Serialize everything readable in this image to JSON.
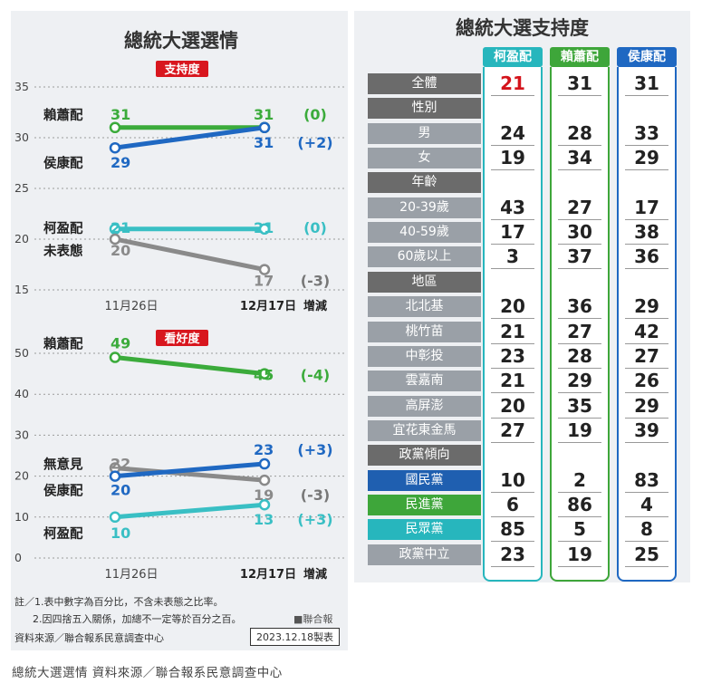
{
  "left": {
    "title": "總統大選選情",
    "chart_data": [
      {
        "type": "line",
        "badge": "支持度",
        "x": [
          "11月26日",
          "12月17日"
        ],
        "change_header": "增減",
        "ylim": [
          15,
          35
        ],
        "yticks": [
          "35",
          "30",
          "25",
          "20",
          "15"
        ],
        "series": [
          {
            "name": "賴蕭配",
            "color": "#3bab3b",
            "values": [
              31,
              31
            ],
            "start_label": "31",
            "end_label": "31",
            "change": "(0)",
            "change_color": "#3bab3b"
          },
          {
            "name": "侯康配",
            "color": "#1f68c2",
            "values": [
              29,
              31
            ],
            "start_label": "29",
            "end_label": "31",
            "change": "(+2)",
            "change_color": "#1f68c2"
          },
          {
            "name": "柯盈配",
            "color": "#39bfc4",
            "values": [
              21,
              21
            ],
            "start_label": "21",
            "end_label": "21",
            "change": "(0)",
            "change_color": "#39bfc4"
          },
          {
            "name": "未表態",
            "color": "#8a8a8a",
            "values": [
              20,
              17
            ],
            "start_label": "20",
            "end_label": "17",
            "change": "(-3)",
            "change_color": "#777777"
          }
        ]
      },
      {
        "type": "line",
        "badge": "看好度",
        "x": [
          "11月26日",
          "12月17日"
        ],
        "change_header": "增減",
        "ylim": [
          0,
          50
        ],
        "yticks": [
          "50",
          "40",
          "30",
          "20",
          "10",
          "0"
        ],
        "series": [
          {
            "name": "賴蕭配",
            "color": "#3bab3b",
            "values": [
              49,
              45
            ],
            "start_label": "49",
            "end_label": "45",
            "change": "(-4)",
            "change_color": "#3bab3b"
          },
          {
            "name": "無意見",
            "color": "#8a8a8a",
            "values": [
              22,
              19
            ],
            "start_label": "22",
            "end_label": "19",
            "change": "(-3)",
            "change_color": "#777777"
          },
          {
            "name": "侯康配",
            "color": "#1f68c2",
            "values": [
              20,
              23
            ],
            "start_label": "20",
            "end_label": "23",
            "change": "(+3)",
            "change_color": "#1f68c2"
          },
          {
            "name": "柯盈配",
            "color": "#39bfc4",
            "values": [
              10,
              13
            ],
            "start_label": "10",
            "end_label": "13",
            "change": "(+3)",
            "change_color": "#39bfc4"
          }
        ]
      }
    ],
    "footnote_1": "註／1.表中數字為百分比，不含未表態之比率。",
    "footnote_2": "2.因四捨五入關係，加總不一定等於百分之百。",
    "footnote_brand": "■聯合報",
    "source": "資料來源／聯合報系民意調查中心",
    "date_made": "2023.12.18製表"
  },
  "right": {
    "title": "總統大選支持度",
    "chart_data": {
      "type": "table",
      "columns": [
        {
          "name": "柯盈配",
          "color": "#27b6bd"
        },
        {
          "name": "賴蕭配",
          "color": "#3ea63a"
        },
        {
          "name": "侯康配",
          "color": "#1f68c2"
        }
      ],
      "rows": [
        {
          "label": "全體",
          "bg": "#6b6b6b",
          "values": [
            "21",
            "31",
            "31"
          ],
          "highlight": true
        },
        {
          "label": "性別",
          "bg": "#6b6b6b",
          "values": [
            "",
            "",
            ""
          ],
          "header": true
        },
        {
          "label": "男",
          "bg": "#9aa0a7",
          "values": [
            "24",
            "28",
            "33"
          ]
        },
        {
          "label": "女",
          "bg": "#9aa0a7",
          "values": [
            "19",
            "34",
            "29"
          ]
        },
        {
          "label": "年齡",
          "bg": "#6b6b6b",
          "values": [
            "",
            "",
            ""
          ],
          "header": true
        },
        {
          "label": "20-39歲",
          "bg": "#9aa0a7",
          "values": [
            "43",
            "27",
            "17"
          ]
        },
        {
          "label": "40-59歲",
          "bg": "#9aa0a7",
          "values": [
            "17",
            "30",
            "38"
          ]
        },
        {
          "label": "60歲以上",
          "bg": "#9aa0a7",
          "values": [
            "3",
            "37",
            "36"
          ]
        },
        {
          "label": "地區",
          "bg": "#6b6b6b",
          "values": [
            "",
            "",
            ""
          ],
          "header": true
        },
        {
          "label": "北北基",
          "bg": "#9aa0a7",
          "values": [
            "20",
            "36",
            "29"
          ]
        },
        {
          "label": "桃竹苗",
          "bg": "#9aa0a7",
          "values": [
            "21",
            "27",
            "42"
          ]
        },
        {
          "label": "中彰投",
          "bg": "#9aa0a7",
          "values": [
            "23",
            "28",
            "27"
          ]
        },
        {
          "label": "雲嘉南",
          "bg": "#9aa0a7",
          "values": [
            "21",
            "29",
            "26"
          ]
        },
        {
          "label": "高屏澎",
          "bg": "#9aa0a7",
          "values": [
            "20",
            "35",
            "29"
          ]
        },
        {
          "label": "宜花東金馬",
          "bg": "#9aa0a7",
          "values": [
            "27",
            "19",
            "39"
          ]
        },
        {
          "label": "政黨傾向",
          "bg": "#6b6b6b",
          "values": [
            "",
            "",
            ""
          ],
          "header": true
        },
        {
          "label": "國民黨",
          "bg": "#1f5fb0",
          "values": [
            "10",
            "2",
            "83"
          ]
        },
        {
          "label": "民進黨",
          "bg": "#3ea63a",
          "values": [
            "6",
            "86",
            "4"
          ]
        },
        {
          "label": "民眾黨",
          "bg": "#27b6bd",
          "values": [
            "85",
            "5",
            "8"
          ]
        },
        {
          "label": "政黨中立",
          "bg": "#9aa0a7",
          "values": [
            "23",
            "19",
            "25"
          ]
        }
      ]
    }
  },
  "caption": "總統大選選情 資料來源／聯合報系民意調查中心"
}
